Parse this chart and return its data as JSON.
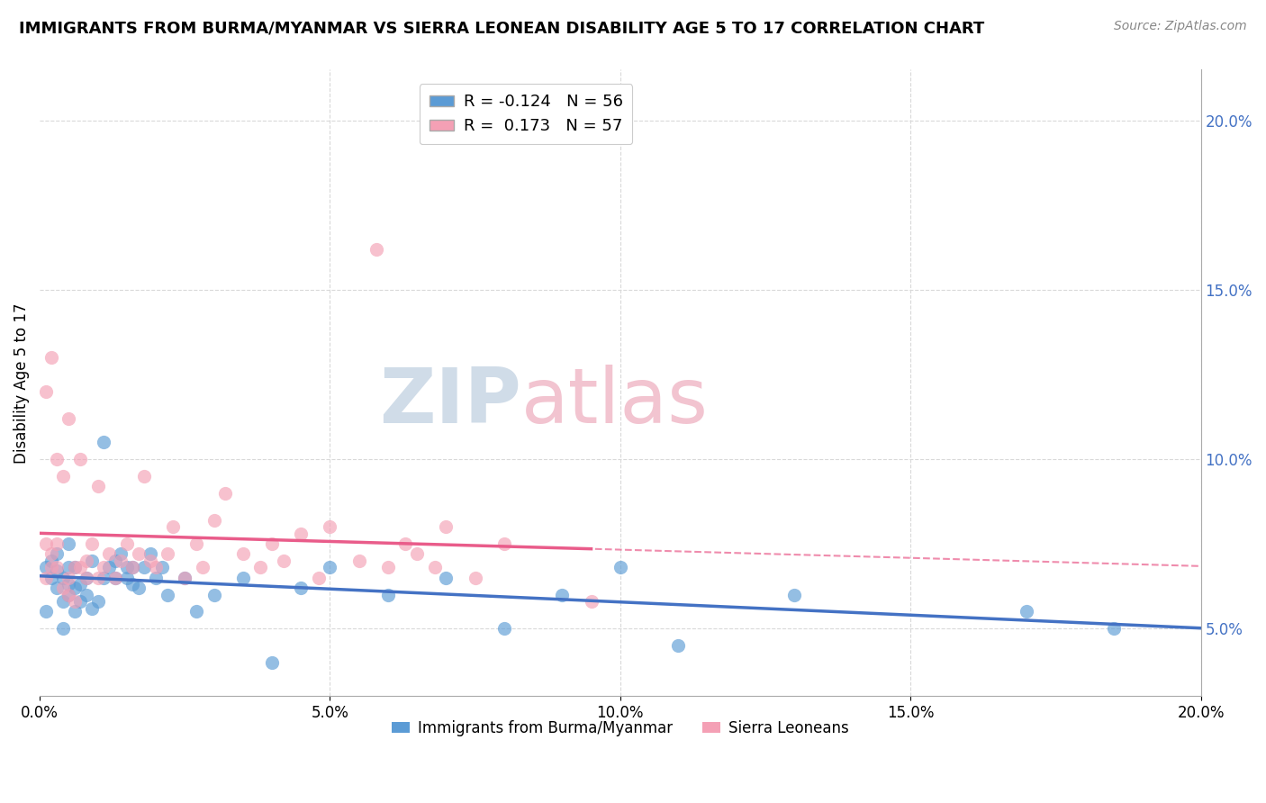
{
  "title": "IMMIGRANTS FROM BURMA/MYANMAR VS SIERRA LEONEAN DISABILITY AGE 5 TO 17 CORRELATION CHART",
  "source": "Source: ZipAtlas.com",
  "ylabel": "Disability Age 5 to 17",
  "xlim": [
    0.0,
    0.2
  ],
  "ylim": [
    0.03,
    0.215
  ],
  "right_yticks": [
    0.05,
    0.1,
    0.15,
    0.2
  ],
  "right_yticklabels": [
    "5.0%",
    "10.0%",
    "15.0%",
    "20.0%"
  ],
  "xticks": [
    0.0,
    0.05,
    0.1,
    0.15,
    0.2
  ],
  "xticklabels": [
    "0.0%",
    "5.0%",
    "10.0%",
    "15.0%",
    "20.0%"
  ],
  "blue_color": "#5b9bd5",
  "pink_color": "#f4a0b5",
  "blue_color_dark": "#4472c4",
  "pink_color_dark": "#e95c8a",
  "blue_label": "Immigrants from Burma/Myanmar",
  "pink_label": "Sierra Leoneans",
  "blue_R": -0.124,
  "blue_N": 56,
  "pink_R": 0.173,
  "pink_N": 57,
  "watermark_zip": "ZIP",
  "watermark_atlas": "atlas",
  "watermark_color": "#d0dce8",
  "watermark_pink": "#f2c4d0",
  "background_color": "#ffffff",
  "grid_color": "#d9d9d9",
  "blue_scatter_x": [
    0.001,
    0.001,
    0.002,
    0.002,
    0.003,
    0.003,
    0.003,
    0.004,
    0.004,
    0.004,
    0.005,
    0.005,
    0.005,
    0.005,
    0.006,
    0.006,
    0.006,
    0.007,
    0.007,
    0.008,
    0.008,
    0.009,
    0.009,
    0.01,
    0.011,
    0.011,
    0.012,
    0.013,
    0.013,
    0.014,
    0.015,
    0.015,
    0.016,
    0.016,
    0.017,
    0.018,
    0.019,
    0.02,
    0.021,
    0.022,
    0.025,
    0.027,
    0.03,
    0.035,
    0.04,
    0.045,
    0.05,
    0.06,
    0.07,
    0.08,
    0.09,
    0.1,
    0.11,
    0.13,
    0.17,
    0.185
  ],
  "blue_scatter_y": [
    0.068,
    0.055,
    0.065,
    0.07,
    0.062,
    0.067,
    0.072,
    0.058,
    0.065,
    0.05,
    0.06,
    0.063,
    0.068,
    0.075,
    0.055,
    0.062,
    0.068,
    0.058,
    0.063,
    0.06,
    0.065,
    0.056,
    0.07,
    0.058,
    0.065,
    0.105,
    0.068,
    0.065,
    0.07,
    0.072,
    0.065,
    0.068,
    0.063,
    0.068,
    0.062,
    0.068,
    0.072,
    0.065,
    0.068,
    0.06,
    0.065,
    0.055,
    0.06,
    0.065,
    0.04,
    0.062,
    0.068,
    0.06,
    0.065,
    0.05,
    0.06,
    0.068,
    0.045,
    0.06,
    0.055,
    0.05
  ],
  "pink_scatter_x": [
    0.001,
    0.001,
    0.001,
    0.002,
    0.002,
    0.002,
    0.003,
    0.003,
    0.003,
    0.004,
    0.004,
    0.005,
    0.005,
    0.005,
    0.006,
    0.006,
    0.007,
    0.007,
    0.008,
    0.008,
    0.009,
    0.01,
    0.01,
    0.011,
    0.012,
    0.013,
    0.014,
    0.015,
    0.016,
    0.017,
    0.018,
    0.019,
    0.02,
    0.022,
    0.023,
    0.025,
    0.027,
    0.028,
    0.03,
    0.032,
    0.035,
    0.038,
    0.04,
    0.042,
    0.045,
    0.048,
    0.05,
    0.055,
    0.058,
    0.06,
    0.063,
    0.065,
    0.068,
    0.07,
    0.075,
    0.08,
    0.095
  ],
  "pink_scatter_y": [
    0.065,
    0.075,
    0.12,
    0.072,
    0.13,
    0.068,
    0.068,
    0.075,
    0.1,
    0.062,
    0.095,
    0.06,
    0.065,
    0.112,
    0.058,
    0.068,
    0.068,
    0.1,
    0.065,
    0.07,
    0.075,
    0.065,
    0.092,
    0.068,
    0.072,
    0.065,
    0.07,
    0.075,
    0.068,
    0.072,
    0.095,
    0.07,
    0.068,
    0.072,
    0.08,
    0.065,
    0.075,
    0.068,
    0.082,
    0.09,
    0.072,
    0.068,
    0.075,
    0.07,
    0.078,
    0.065,
    0.08,
    0.07,
    0.162,
    0.068,
    0.075,
    0.072,
    0.068,
    0.08,
    0.065,
    0.075,
    0.058
  ]
}
